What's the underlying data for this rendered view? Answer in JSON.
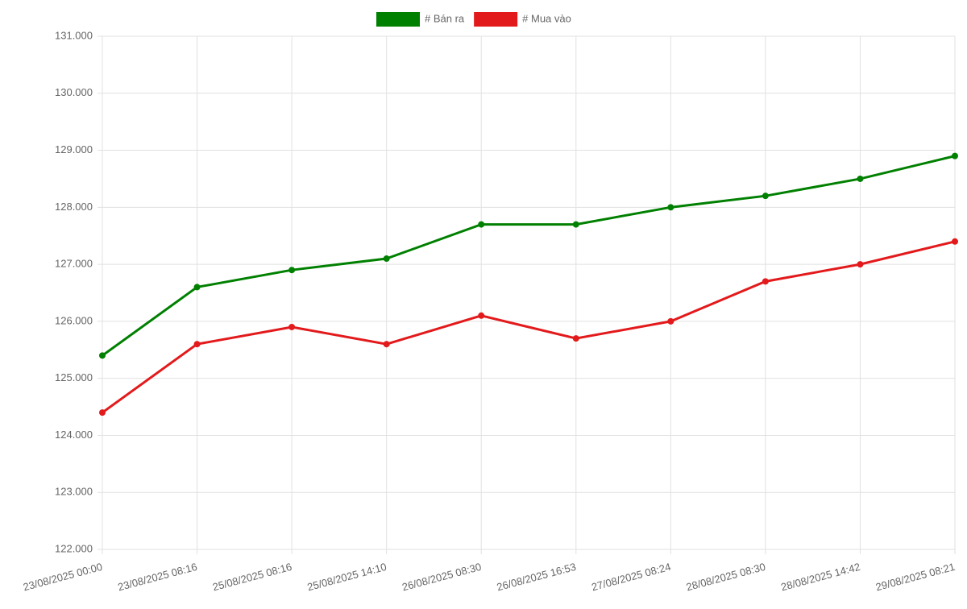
{
  "chart_data": {
    "type": "line",
    "categories": [
      "23/08/2025 00:00",
      "23/08/2025 08:16",
      "25/08/2025 08:16",
      "25/08/2025 14:10",
      "26/08/2025 08:30",
      "26/08/2025 16:53",
      "27/08/2025 08:24",
      "28/08/2025 08:30",
      "28/08/2025 14:42",
      "29/08/2025 08:21"
    ],
    "series": [
      {
        "name": "# Bán ra",
        "color": "#008000",
        "values": [
          125400,
          126600,
          126900,
          127100,
          127700,
          127700,
          128000,
          128200,
          128500,
          128900
        ]
      },
      {
        "name": "# Mua vào",
        "color": "#e31a1c",
        "values": [
          124400,
          125600,
          125900,
          125600,
          126100,
          125700,
          126000,
          126700,
          127000,
          127400
        ]
      }
    ],
    "ylim": [
      122000,
      131000
    ],
    "yticks": [
      {
        "value": 122000,
        "label": "122.000"
      },
      {
        "value": 123000,
        "label": "123.000"
      },
      {
        "value": 124000,
        "label": "124.000"
      },
      {
        "value": 125000,
        "label": "125.000"
      },
      {
        "value": 126000,
        "label": "126.000"
      },
      {
        "value": 127000,
        "label": "127.000"
      },
      {
        "value": 128000,
        "label": "128.000"
      },
      {
        "value": 129000,
        "label": "129.000"
      },
      {
        "value": 130000,
        "label": "130.000"
      },
      {
        "value": 131000,
        "label": "131.000"
      }
    ],
    "grid": true,
    "legend": "top"
  }
}
